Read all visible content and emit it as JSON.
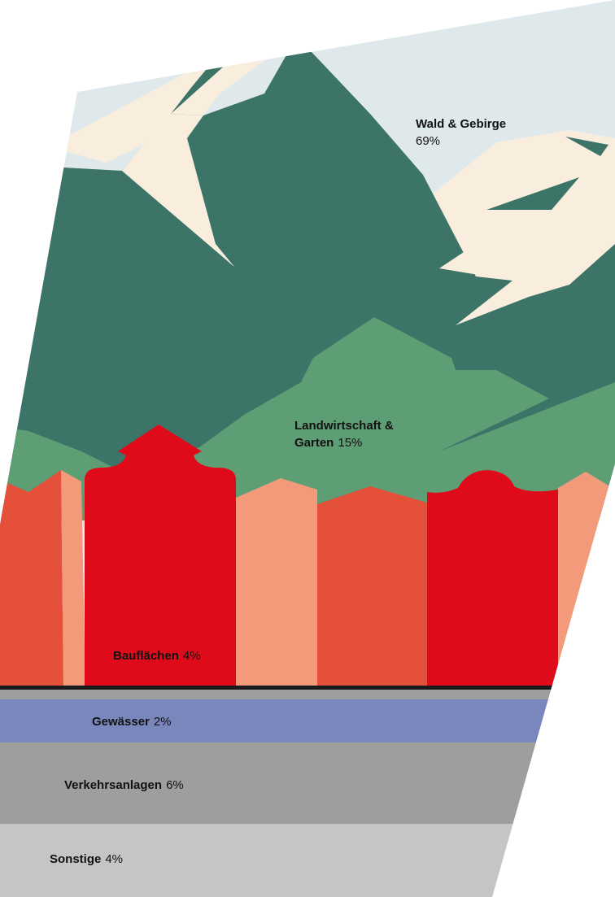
{
  "colors": {
    "sky": "#dfe9ec",
    "snow": "#f9eedd",
    "forest": "#3c7468",
    "agriculture": "#5e9e75",
    "building_dark": "#e4503a",
    "building_light": "#f29a79",
    "building_red": "#e00b1a",
    "water": "#7a87bc",
    "traffic": "#9e9e9c",
    "other": "#c5c5c5"
  },
  "chart_data": {
    "type": "area",
    "categories": [
      {
        "name": "Wald & Gebirge",
        "value": "69%"
      },
      {
        "name": "Landwirtschaft & Garten",
        "value": "15%"
      },
      {
        "name": "Bauflächen",
        "value": "4%"
      },
      {
        "name": "Gewässer",
        "value": "2%"
      },
      {
        "name": "Verkehrsanlagen",
        "value": "6%"
      },
      {
        "name": "Sonstige",
        "value": "4%"
      }
    ]
  },
  "labels": {
    "wald_name": "Wald & Gebirge",
    "wald_value": "69%",
    "landwirt_name_line1": "Landwirtschaft &",
    "landwirt_name_line2": "Garten",
    "landwirt_value": "15%",
    "bau_name": "Bauflächen",
    "bau_value": "4%",
    "gewaesser_name": "Gewässer",
    "gewaesser_value": "2%",
    "verkehr_name": "Verkehrsanlagen",
    "verkehr_value": "6%",
    "sonstige_name": "Sonstige",
    "sonstige_value": "4%"
  }
}
